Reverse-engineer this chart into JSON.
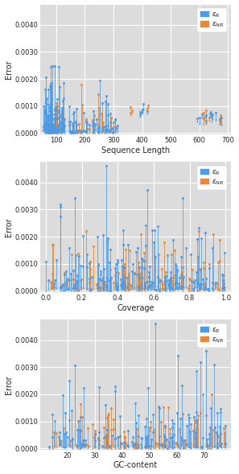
{
  "background_color": "#dcdcdc",
  "blue_color": "#4C9BE8",
  "orange_color": "#E8883A",
  "plots": [
    {
      "xlabel": "Sequence Length",
      "ylabel": "Error",
      "xlim": [
        45,
        710
      ],
      "ylim": [
        -5e-05,
        0.00475
      ],
      "xticks": [
        100,
        200,
        300,
        400,
        500,
        600,
        700
      ],
      "yticks": [
        0.0,
        0.001,
        0.002,
        0.003,
        0.004
      ]
    },
    {
      "xlabel": "Coverage",
      "ylabel": "Error",
      "xlim": [
        -0.03,
        1.03
      ],
      "ylim": [
        -5e-05,
        0.00475
      ],
      "xticks": [
        0.0,
        0.2,
        0.4,
        0.6,
        0.8,
        1.0
      ],
      "yticks": [
        0.0,
        0.001,
        0.002,
        0.003,
        0.004
      ]
    },
    {
      "xlabel": "GC-content",
      "ylabel": "Error",
      "xlim": [
        10,
        80
      ],
      "ylim": [
        -5e-05,
        0.00475
      ],
      "xticks": [
        20,
        30,
        40,
        50,
        60,
        70
      ],
      "yticks": [
        0.0,
        0.001,
        0.002,
        0.003,
        0.004
      ]
    }
  ],
  "legend_label_R": "$\\epsilon_R$",
  "legend_label_NR": "$\\epsilon_{NR}$"
}
